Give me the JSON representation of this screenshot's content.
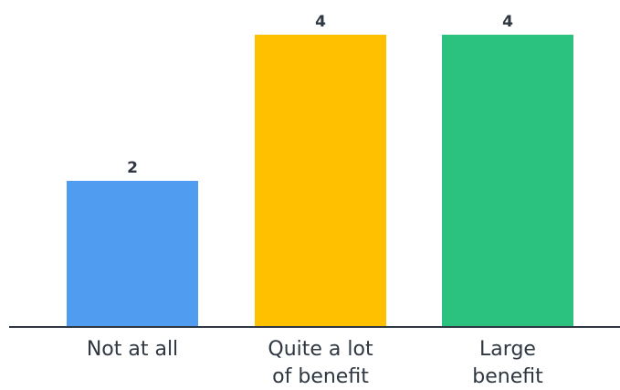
{
  "chart_data": {
    "type": "bar",
    "categories": [
      "Not at all",
      "Quite a lot of benefit",
      "Large benefit"
    ],
    "category_lines": [
      [
        "Not at all"
      ],
      [
        "Quite a lot",
        "of benefit"
      ],
      [
        "Large",
        "benefit"
      ]
    ],
    "values": [
      2,
      4,
      4
    ],
    "data_labels": [
      "2",
      "4",
      "4"
    ],
    "colors": [
      "#4f9cf0",
      "#ffc000",
      "#2bc27f"
    ],
    "axis_color": "#2f3742",
    "ylim": [
      0,
      4
    ],
    "grid": false,
    "title": "",
    "xlabel": "",
    "ylabel": ""
  }
}
